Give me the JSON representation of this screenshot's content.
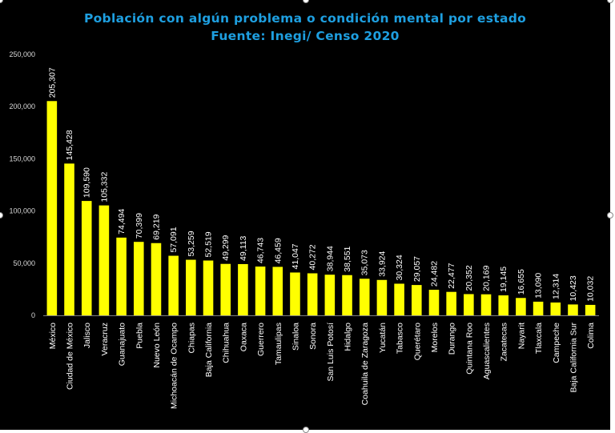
{
  "chart_data": {
    "type": "bar",
    "title": "Población con algún problema o condición mental por estado",
    "subtitle": "Fuente: Inegi/ Censo 2020",
    "xlabel": "",
    "ylabel": "",
    "ylim": [
      0,
      250000
    ],
    "ytick_labels": [
      "0",
      "50,000",
      "100,000",
      "150,000",
      "200,000",
      "250,000"
    ],
    "ytick_values": [
      0,
      50000,
      100000,
      150000,
      200000,
      250000
    ],
    "grid": false,
    "bar_color": "#ffff00",
    "title_color": "#1e9fe0",
    "categories": [
      "México",
      "Ciudad de México",
      "Jalisco",
      "Veracruz",
      "Guanajuato",
      "Puebla",
      "Nuevo León",
      "Michoacán de Ocampo",
      "Chiapas",
      "Baja California",
      "Chihuahua",
      "Oaxaca",
      "Guerrero",
      "Tamaulipas",
      "Sinaloa",
      "Sonora",
      "San Luis Potosí",
      "Hidalgo",
      "Coahuila de Zaragoza",
      "Yucatán",
      "Tabasco",
      "Querétaro",
      "Morelos",
      "Durango",
      "Quintana Roo",
      "Aguascalientes",
      "Zacatecas",
      "Nayarit",
      "Tlaxcala",
      "Campeche",
      "Baja California Sur",
      "Colima"
    ],
    "values": [
      205307,
      145428,
      109590,
      105332,
      74494,
      70399,
      69219,
      57091,
      53259,
      52519,
      49299,
      49113,
      46743,
      46459,
      41047,
      40272,
      38944,
      38551,
      35073,
      33924,
      30324,
      29057,
      24482,
      22477,
      20352,
      20169,
      19145,
      16655,
      13090,
      12314,
      10423,
      10032
    ],
    "value_labels": [
      "205,307",
      "145,428",
      "109,590",
      "105,332",
      "74,494",
      "70,399",
      "69,219",
      "57,091",
      "53,259",
      "52,519",
      "49,299",
      "49,113",
      "46,743",
      "46,459",
      "41,047",
      "40,272",
      "38,944",
      "38,551",
      "35,073",
      "33,924",
      "30,324",
      "29,057",
      "24,482",
      "22,477",
      "20,352",
      "20,169",
      "19,145",
      "16,655",
      "13,090",
      "12,314",
      "10,423",
      "10,032"
    ]
  }
}
